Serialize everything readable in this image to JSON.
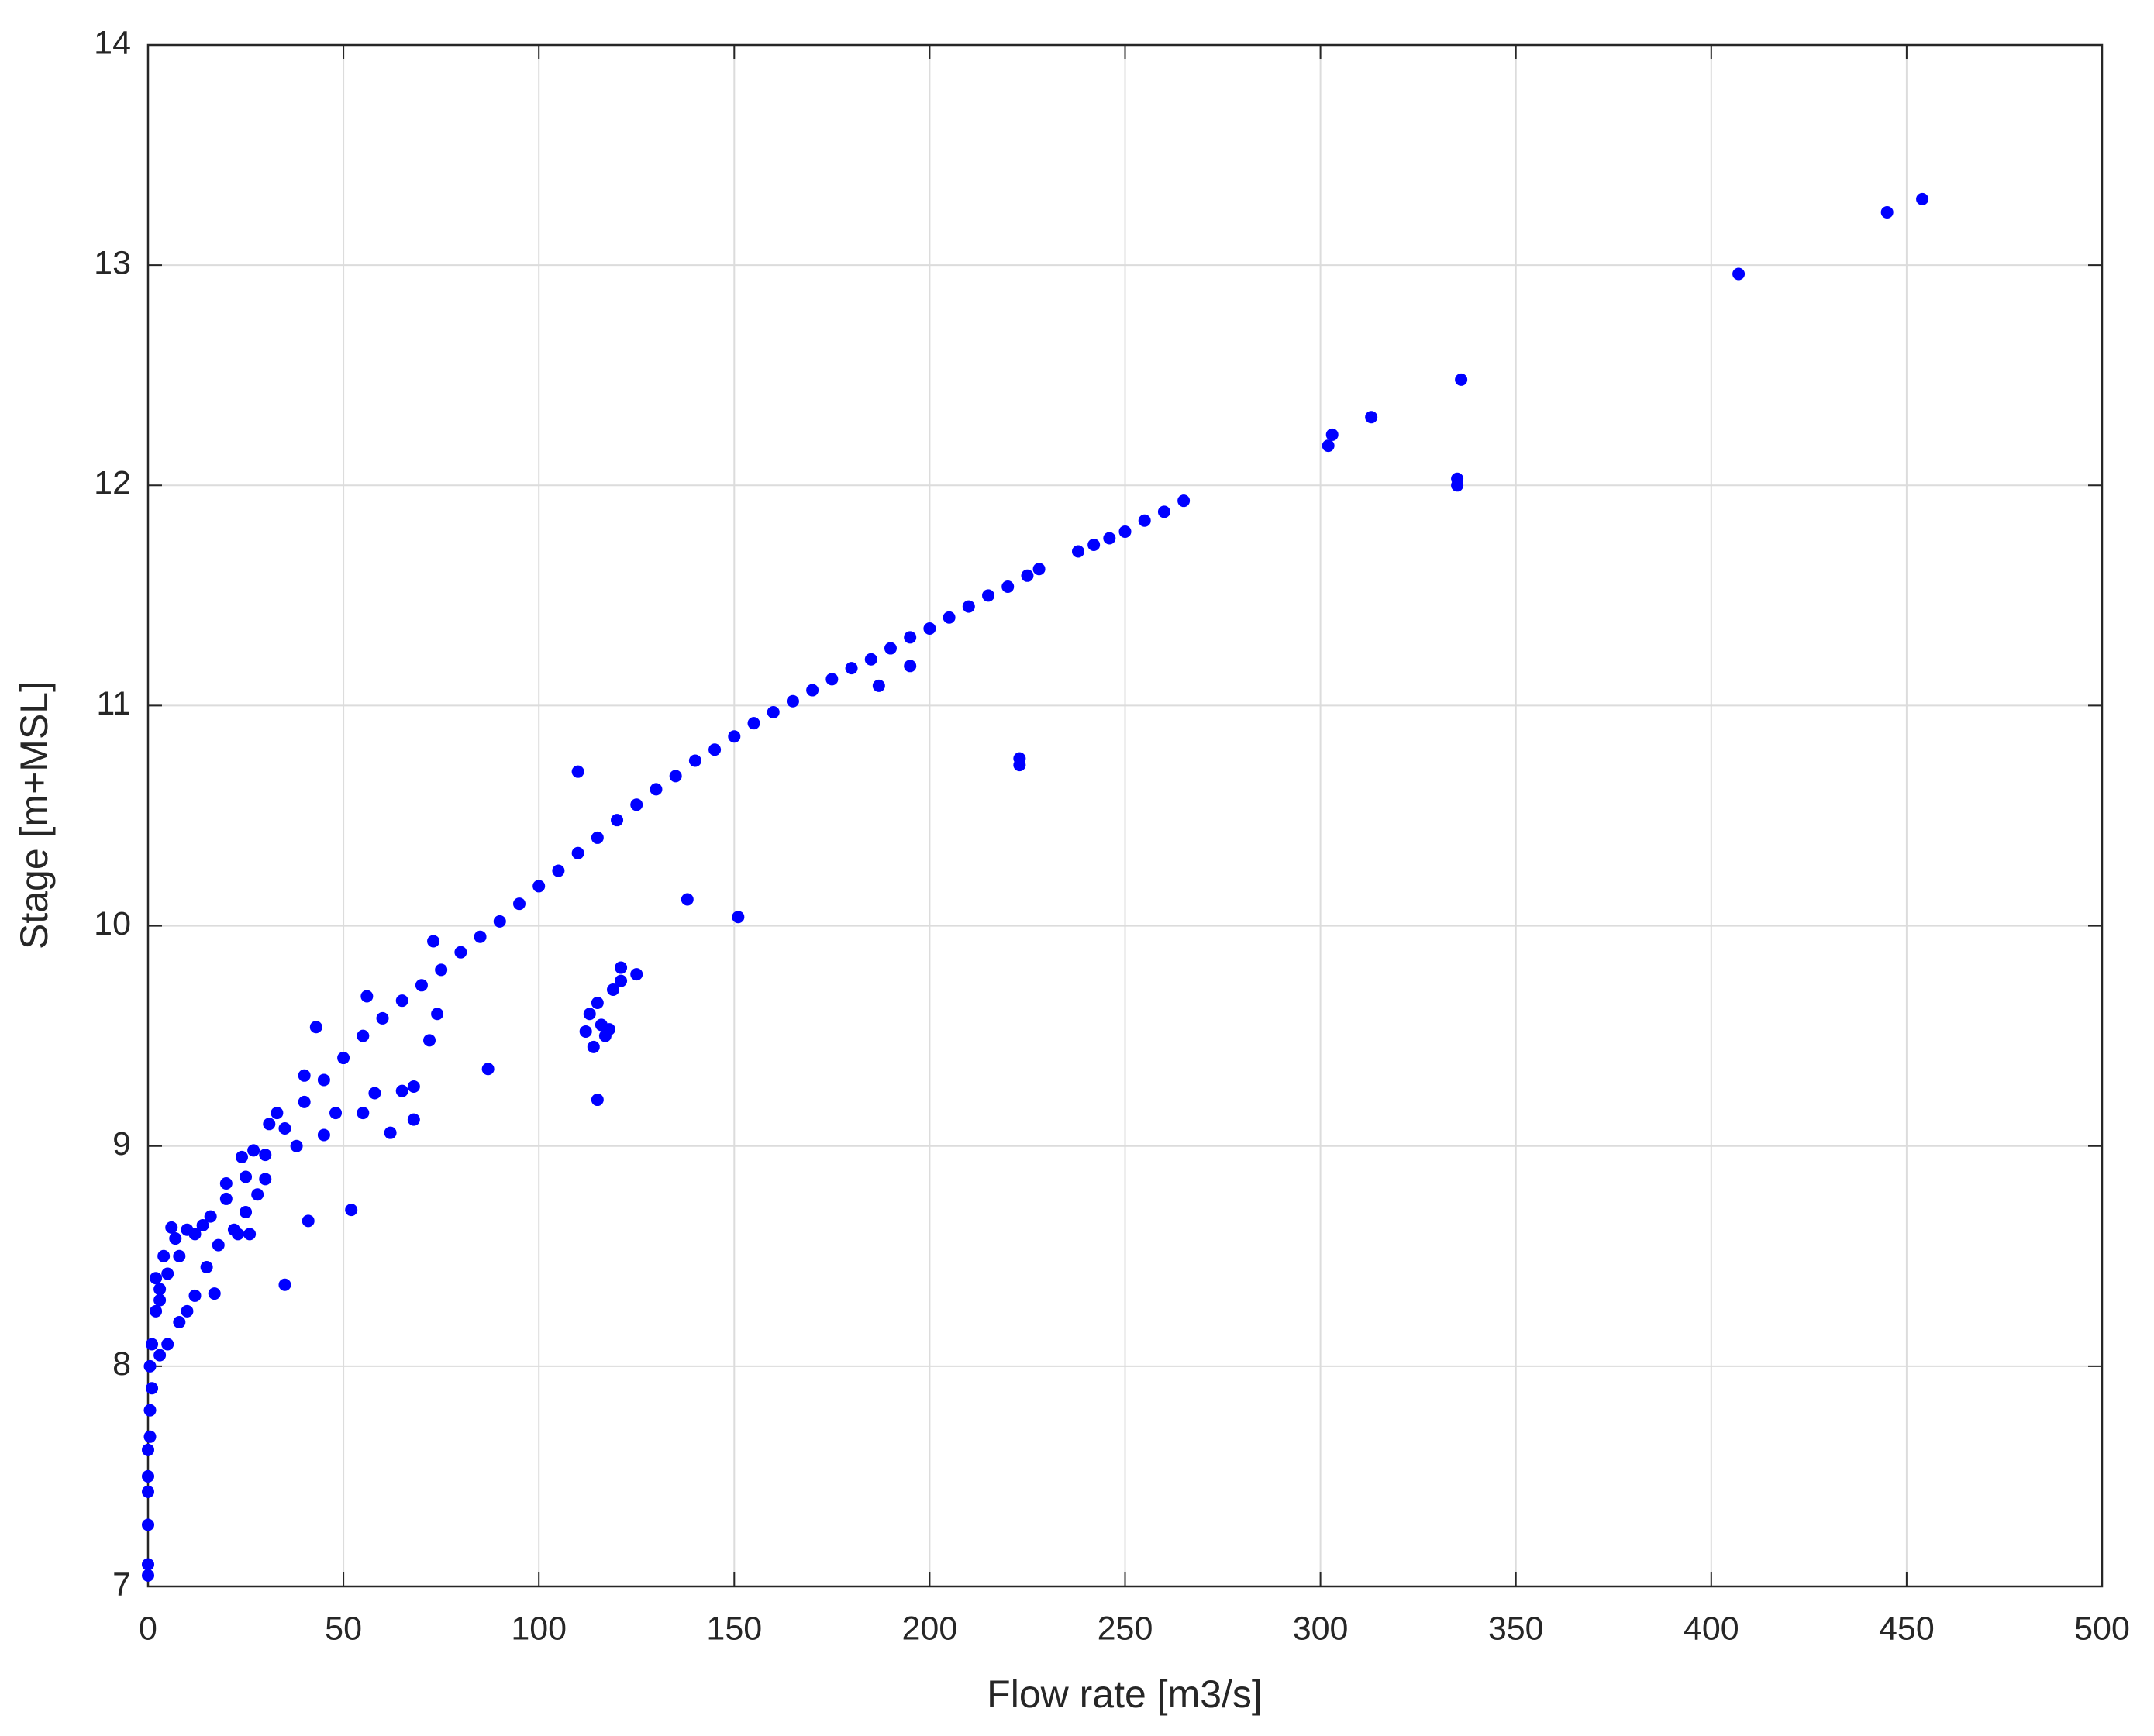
{
  "chart_data": {
    "type": "scatter",
    "xlabel": "Flow rate [m3/s]",
    "ylabel": "Stage [m+MSL]",
    "color": "#0000ff",
    "grid": true,
    "xlim": [
      0,
      500
    ],
    "xticks": [
      0,
      50,
      100,
      150,
      200,
      250,
      300,
      350,
      400,
      450,
      500
    ],
    "ylim": [
      7,
      14
    ],
    "yticks": [
      7,
      8,
      9,
      10,
      11,
      12,
      13,
      14
    ],
    "x": [
      1,
      2,
      3,
      5,
      8,
      12,
      16,
      20,
      25,
      30,
      35,
      40,
      45,
      50,
      55,
      60,
      65,
      70,
      75,
      80,
      85,
      90,
      95,
      100,
      105,
      110,
      115,
      120,
      125,
      130,
      135,
      140,
      145,
      150,
      155,
      160,
      165,
      170,
      175,
      180,
      185,
      190,
      195,
      200,
      205,
      210,
      215,
      220,
      225,
      228,
      238,
      242,
      246,
      250,
      255,
      260,
      265,
      302,
      303,
      313,
      335,
      335,
      336,
      407,
      445,
      454,
      223,
      223,
      187,
      195,
      110,
      138,
      151,
      87,
      73,
      74,
      72,
      56,
      43,
      52,
      35,
      41,
      112,
      113,
      114,
      115,
      115,
      116,
      117,
      118,
      119,
      121,
      121,
      125,
      68,
      68,
      65,
      62,
      58,
      55,
      48,
      45,
      40,
      38,
      30,
      28,
      25,
      22,
      18,
      15,
      12,
      10,
      8,
      5,
      3,
      0,
      0,
      0,
      0,
      0,
      0,
      0.5,
      0.5,
      1,
      0.5,
      2,
      4,
      6,
      3,
      7,
      10,
      14,
      20,
      24,
      27,
      31,
      33,
      17,
      23,
      26
    ],
    "values": [
      8.1,
      8.25,
      8.35,
      8.42,
      8.5,
      8.6,
      8.68,
      8.76,
      8.86,
      8.96,
      9.08,
      9.2,
      9.3,
      9.4,
      9.5,
      9.58,
      9.66,
      9.73,
      9.8,
      9.88,
      9.95,
      10.02,
      10.1,
      10.18,
      10.25,
      10.33,
      10.4,
      10.48,
      10.55,
      10.62,
      10.68,
      10.75,
      10.8,
      10.86,
      10.92,
      10.97,
      11.02,
      11.07,
      11.12,
      11.17,
      11.21,
      11.26,
      11.31,
      11.35,
      11.4,
      11.45,
      11.5,
      11.54,
      11.59,
      11.62,
      11.7,
      11.73,
      11.76,
      11.79,
      11.84,
      11.88,
      11.93,
      12.18,
      12.23,
      12.31,
      12.0,
      12.03,
      12.48,
      12.96,
      13.24,
      13.3,
      10.73,
      10.76,
      11.09,
      11.18,
      10.7,
      10.12,
      10.04,
      9.35,
      9.93,
      9.6,
      9.48,
      9.68,
      9.54,
      8.71,
      8.37,
      8.66,
      9.52,
      9.6,
      9.45,
      9.65,
      9.21,
      9.55,
      9.5,
      9.53,
      9.71,
      9.75,
      9.81,
      9.78,
      9.27,
      9.12,
      9.25,
      9.06,
      9.24,
      9.15,
      9.15,
      9.05,
      9.32,
      9.0,
      8.85,
      8.78,
      8.7,
      8.62,
      8.55,
      8.45,
      8.32,
      8.25,
      8.2,
      8.1,
      8.05,
      7.05,
      7.1,
      7.28,
      7.43,
      7.5,
      7.62,
      7.68,
      7.8,
      7.9,
      8.0,
      8.4,
      8.5,
      8.63,
      8.3,
      8.58,
      8.62,
      8.64,
      8.83,
      8.95,
      8.98,
      9.1,
      9.15,
      8.33,
      8.6,
      8.6
    ]
  }
}
